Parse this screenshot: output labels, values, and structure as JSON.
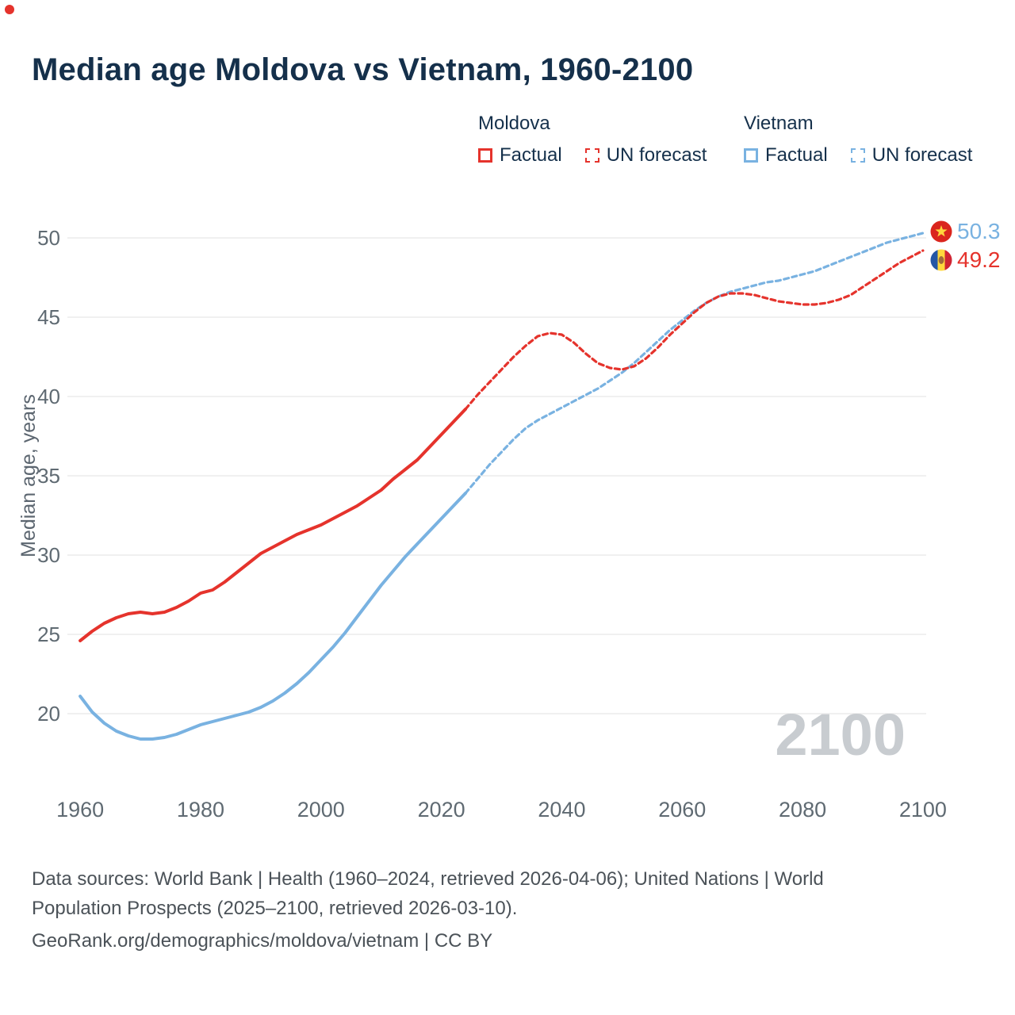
{
  "title": "Median age Moldova vs Vietnam, 1960-2100",
  "legend": {
    "moldova_label": "Moldova",
    "vietnam_label": "Vietnam",
    "factual_label": "Factual",
    "forecast_label": "UN forecast"
  },
  "colors": {
    "moldova": "#e5332c",
    "vietnam": "#79b2e1",
    "title": "#15304b",
    "axis_text": "#5f6a72",
    "grid": "#e8e8e8",
    "watermark": "#c8ccd0",
    "vietnam_flag_red": "#da251d",
    "vietnam_flag_star": "#ffd53d",
    "moldova_flag_blue": "#2457a5",
    "moldova_flag_yellow": "#ffd83d",
    "moldova_flag_red": "#d02433",
    "moldova_flag_emblem": "#a06b3a"
  },
  "end_labels": {
    "vietnam_value": "50.3",
    "moldova_value": "49.2"
  },
  "watermark": "2100",
  "footer": {
    "sources": "Data sources: World Bank | Health (1960–2024, retrieved 2026-04-06); United Nations | World Population Prospects (2025–2100, retrieved 2026-03-10).",
    "attribution": "GeoRank.org/demographics/moldova/vietnam | CC BY"
  },
  "chart_data": {
    "type": "line",
    "title": "Median age Moldova vs Vietnam, 1960-2100",
    "xlabel": "",
    "ylabel": "Median age, years",
    "xlim": [
      1953,
      2112
    ],
    "ylim": [
      17.6,
      51.6
    ],
    "x_ticks": [
      1960,
      1980,
      2000,
      2020,
      2040,
      2060,
      2080,
      2100
    ],
    "y_ticks": [
      20,
      25,
      30,
      35,
      40,
      45,
      50
    ],
    "grid": "horizontal",
    "legend_position": "top",
    "series": [
      {
        "name": "Vietnam Factual",
        "color_key": "vietnam",
        "style": "solid",
        "points": [
          [
            1960,
            21.1
          ],
          [
            1962,
            20.1
          ],
          [
            1964,
            19.4
          ],
          [
            1966,
            18.9
          ],
          [
            1968,
            18.6
          ],
          [
            1970,
            18.4
          ],
          [
            1972,
            18.4
          ],
          [
            1974,
            18.5
          ],
          [
            1976,
            18.7
          ],
          [
            1978,
            19.0
          ],
          [
            1980,
            19.3
          ],
          [
            1982,
            19.5
          ],
          [
            1984,
            19.7
          ],
          [
            1986,
            19.9
          ],
          [
            1988,
            20.1
          ],
          [
            1990,
            20.4
          ],
          [
            1992,
            20.8
          ],
          [
            1994,
            21.3
          ],
          [
            1996,
            21.9
          ],
          [
            1998,
            22.6
          ],
          [
            2000,
            23.4
          ],
          [
            2002,
            24.2
          ],
          [
            2004,
            25.1
          ],
          [
            2006,
            26.1
          ],
          [
            2008,
            27.1
          ],
          [
            2010,
            28.1
          ],
          [
            2012,
            29.0
          ],
          [
            2014,
            29.9
          ],
          [
            2016,
            30.7
          ],
          [
            2018,
            31.5
          ],
          [
            2020,
            32.3
          ],
          [
            2022,
            33.1
          ],
          [
            2024,
            33.9
          ]
        ]
      },
      {
        "name": "Vietnam UN forecast",
        "color_key": "vietnam",
        "style": "dashed",
        "points": [
          [
            2024,
            33.9
          ],
          [
            2026,
            34.8
          ],
          [
            2028,
            35.7
          ],
          [
            2030,
            36.5
          ],
          [
            2032,
            37.3
          ],
          [
            2034,
            38.0
          ],
          [
            2036,
            38.5
          ],
          [
            2038,
            38.9
          ],
          [
            2040,
            39.3
          ],
          [
            2042,
            39.7
          ],
          [
            2044,
            40.1
          ],
          [
            2046,
            40.5
          ],
          [
            2048,
            41.0
          ],
          [
            2050,
            41.5
          ],
          [
            2052,
            42.1
          ],
          [
            2054,
            42.8
          ],
          [
            2056,
            43.5
          ],
          [
            2058,
            44.2
          ],
          [
            2060,
            44.8
          ],
          [
            2062,
            45.4
          ],
          [
            2064,
            45.9
          ],
          [
            2066,
            46.3
          ],
          [
            2068,
            46.6
          ],
          [
            2070,
            46.8
          ],
          [
            2072,
            47.0
          ],
          [
            2074,
            47.2
          ],
          [
            2076,
            47.3
          ],
          [
            2078,
            47.5
          ],
          [
            2080,
            47.7
          ],
          [
            2082,
            47.9
          ],
          [
            2084,
            48.2
          ],
          [
            2086,
            48.5
          ],
          [
            2088,
            48.8
          ],
          [
            2090,
            49.1
          ],
          [
            2092,
            49.4
          ],
          [
            2094,
            49.7
          ],
          [
            2096,
            49.9
          ],
          [
            2098,
            50.1
          ],
          [
            2100,
            50.3
          ]
        ]
      },
      {
        "name": "Moldova Factual",
        "color_key": "moldova",
        "style": "solid",
        "points": [
          [
            1960,
            24.6
          ],
          [
            1962,
            25.2
          ],
          [
            1964,
            25.7
          ],
          [
            1966,
            26.05
          ],
          [
            1968,
            26.3
          ],
          [
            1970,
            26.4
          ],
          [
            1972,
            26.3
          ],
          [
            1974,
            26.4
          ],
          [
            1976,
            26.7
          ],
          [
            1978,
            27.1
          ],
          [
            1980,
            27.6
          ],
          [
            1982,
            27.8
          ],
          [
            1984,
            28.3
          ],
          [
            1986,
            28.9
          ],
          [
            1988,
            29.5
          ],
          [
            1990,
            30.1
          ],
          [
            1992,
            30.5
          ],
          [
            1994,
            30.9
          ],
          [
            1996,
            31.3
          ],
          [
            1998,
            31.6
          ],
          [
            2000,
            31.9
          ],
          [
            2002,
            32.3
          ],
          [
            2004,
            32.7
          ],
          [
            2006,
            33.1
          ],
          [
            2008,
            33.6
          ],
          [
            2010,
            34.1
          ],
          [
            2012,
            34.8
          ],
          [
            2014,
            35.4
          ],
          [
            2016,
            36.0
          ],
          [
            2018,
            36.8
          ],
          [
            2020,
            37.6
          ],
          [
            2022,
            38.4
          ],
          [
            2024,
            39.2
          ]
        ]
      },
      {
        "name": "Moldova UN forecast",
        "color_key": "moldova",
        "style": "dashed",
        "points": [
          [
            2024,
            39.2
          ],
          [
            2026,
            40.1
          ],
          [
            2028,
            40.9
          ],
          [
            2030,
            41.7
          ],
          [
            2032,
            42.5
          ],
          [
            2034,
            43.2
          ],
          [
            2036,
            43.8
          ],
          [
            2038,
            44.0
          ],
          [
            2040,
            43.9
          ],
          [
            2042,
            43.4
          ],
          [
            2044,
            42.7
          ],
          [
            2046,
            42.1
          ],
          [
            2048,
            41.8
          ],
          [
            2050,
            41.7
          ],
          [
            2052,
            41.9
          ],
          [
            2054,
            42.4
          ],
          [
            2056,
            43.1
          ],
          [
            2058,
            43.9
          ],
          [
            2060,
            44.6
          ],
          [
            2062,
            45.3
          ],
          [
            2064,
            45.9
          ],
          [
            2066,
            46.3
          ],
          [
            2068,
            46.5
          ],
          [
            2070,
            46.5
          ],
          [
            2072,
            46.4
          ],
          [
            2074,
            46.2
          ],
          [
            2076,
            46.0
          ],
          [
            2078,
            45.9
          ],
          [
            2080,
            45.8
          ],
          [
            2082,
            45.8
          ],
          [
            2084,
            45.9
          ],
          [
            2086,
            46.1
          ],
          [
            2088,
            46.4
          ],
          [
            2090,
            46.9
          ],
          [
            2092,
            47.4
          ],
          [
            2094,
            47.9
          ],
          [
            2096,
            48.4
          ],
          [
            2098,
            48.8
          ],
          [
            2100,
            49.2
          ]
        ]
      }
    ]
  }
}
